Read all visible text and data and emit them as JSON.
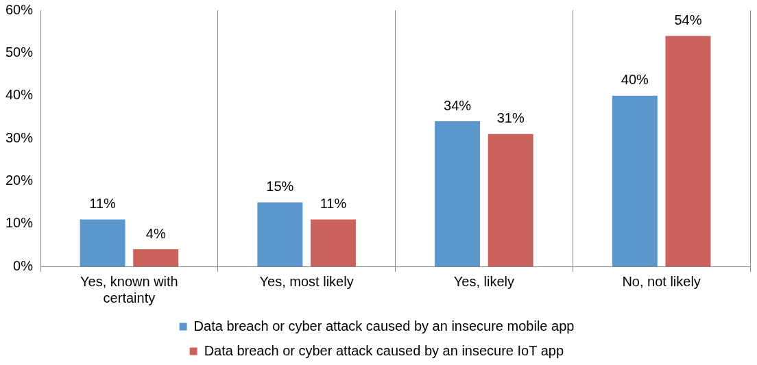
{
  "chart_data": {
    "type": "bar",
    "categories": [
      "Yes, known with certainty",
      "Yes, most likely",
      "Yes, likely",
      "No, not likely"
    ],
    "series": [
      {
        "name": "Data breach or cyber attack caused by an insecure mobile app",
        "color": "#5b97cc",
        "values": [
          11,
          15,
          34,
          40
        ],
        "value_labels": [
          "11%",
          "15%",
          "34%",
          "40%"
        ]
      },
      {
        "name": "Data breach or cyber attack caused by an insecure IoT app",
        "color": "#cc625c",
        "values": [
          4,
          11,
          31,
          54
        ],
        "value_labels": [
          "4%",
          "11%",
          "31%",
          "54%"
        ]
      }
    ],
    "ylim": [
      0,
      60
    ],
    "yticks": [
      {
        "value": 0,
        "label": "0%"
      },
      {
        "value": 10,
        "label": "10%"
      },
      {
        "value": 20,
        "label": "20%"
      },
      {
        "value": 30,
        "label": "30%"
      },
      {
        "value": 40,
        "label": "40%"
      },
      {
        "value": 50,
        "label": "50%"
      },
      {
        "value": 60,
        "label": "60%"
      }
    ],
    "grid": "x",
    "legend": "bottom"
  }
}
